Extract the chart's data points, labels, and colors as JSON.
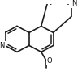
{
  "bg": "#ffffff",
  "lc": "#1c1c1c",
  "lw": 1.2,
  "d_inner": 0.03,
  "shrink": 0.032,
  "fs": 6.0,
  "figsize": [
    0.96,
    0.93
  ],
  "dpi": 100,
  "xlim": [
    0.0,
    1.0
  ],
  "ylim": [
    -0.05,
    1.0
  ],
  "R": 0.19,
  "c1": [
    0.28,
    0.52
  ],
  "c2": [
    0.54,
    0.52
  ],
  "c3": [
    0.54,
    0.19
  ]
}
